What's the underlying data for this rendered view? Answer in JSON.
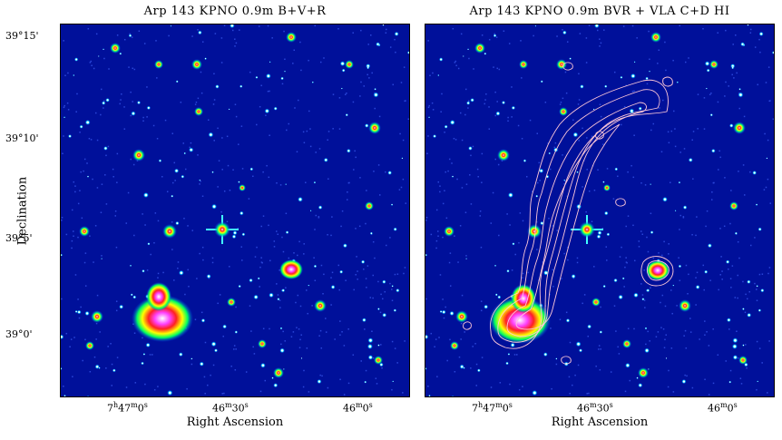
{
  "panels": [
    {
      "title": "Arp 143 KPNO 0.9m B+V+R",
      "xlabel": "Right Ascension",
      "xticks": [
        {
          "h": "7",
          "m": "47",
          "s": "0"
        },
        {
          "h": "",
          "m": "46",
          "s": "30"
        },
        {
          "h": "",
          "m": "46",
          "s": "0"
        }
      ]
    },
    {
      "title": "Arp 143 KPNO 0.9m BVR + VLA C+D HI",
      "xlabel": "Right Ascension",
      "xticks": [
        {
          "h": "7",
          "m": "47",
          "s": "0"
        },
        {
          "h": "",
          "m": "46",
          "s": "30"
        },
        {
          "h": "",
          "m": "46",
          "s": "0"
        }
      ]
    }
  ],
  "ylabel": "Declination",
  "yticks": [
    {
      "deg": "39",
      "min": "15"
    },
    {
      "deg": "39",
      "min": "10"
    },
    {
      "deg": "39",
      "min": "5"
    },
    {
      "deg": "39",
      "min": "0"
    }
  ],
  "colors": {
    "sky": "#00109a",
    "star": "#ffffff",
    "contour": "#ffc8d8"
  }
}
